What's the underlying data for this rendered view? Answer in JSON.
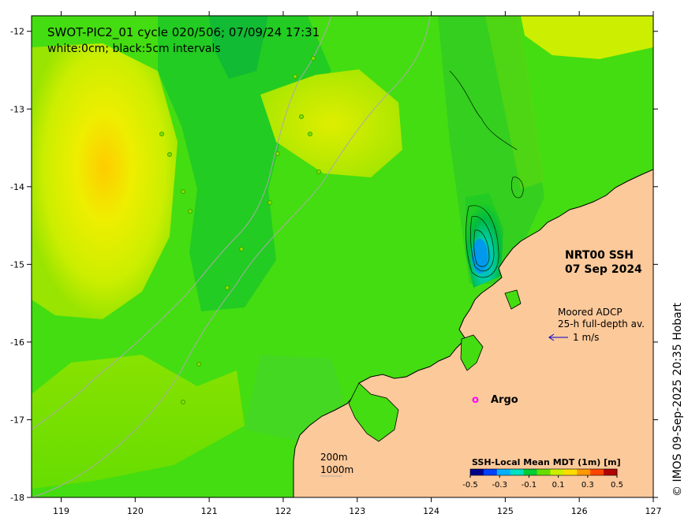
{
  "title_line1": "SWOT-PIC2_01 cycle 020/506; 07/09/24 17:31",
  "title_line2": "white:0cm; black:5cm intervals",
  "product_title": "NRT00 SSH",
  "product_date": "07 Sep 2024",
  "adcp_title": "Moored ADCP",
  "adcp_sub": "25-h full-depth av.",
  "adcp_scale": "1 m/s",
  "argo_marker": "o",
  "argo_label": "Argo",
  "depth_label_1": "200m",
  "depth_label_2": "1000m",
  "colorbar": {
    "title": "SSH-Local Mean MDT (1m) [m]",
    "ticks": [
      "-0.5",
      "-0.3",
      "-0.1",
      "0.1",
      "0.3",
      "0.5"
    ],
    "colors": [
      "#00008b",
      "#0040ff",
      "#00b0ff",
      "#00e0c0",
      "#00cc33",
      "#66dd00",
      "#ccee00",
      "#ffdd00",
      "#ff9900",
      "#ff4400",
      "#b00000"
    ]
  },
  "credit": "© IMOS 09-Sep-2025 20:35 Hobart",
  "axes": {
    "x_ticks": [
      "119",
      "120",
      "121",
      "122",
      "123",
      "124",
      "125",
      "126",
      "127"
    ],
    "y_ticks": [
      "-12",
      "-13",
      "-14",
      "-15",
      "-16",
      "-17",
      "-18"
    ]
  },
  "colors": {
    "ocean_base": "#44dd11",
    "land": "#fcc99a",
    "argo": "#ff00ff",
    "adcp_arrow": "#0000cc"
  }
}
